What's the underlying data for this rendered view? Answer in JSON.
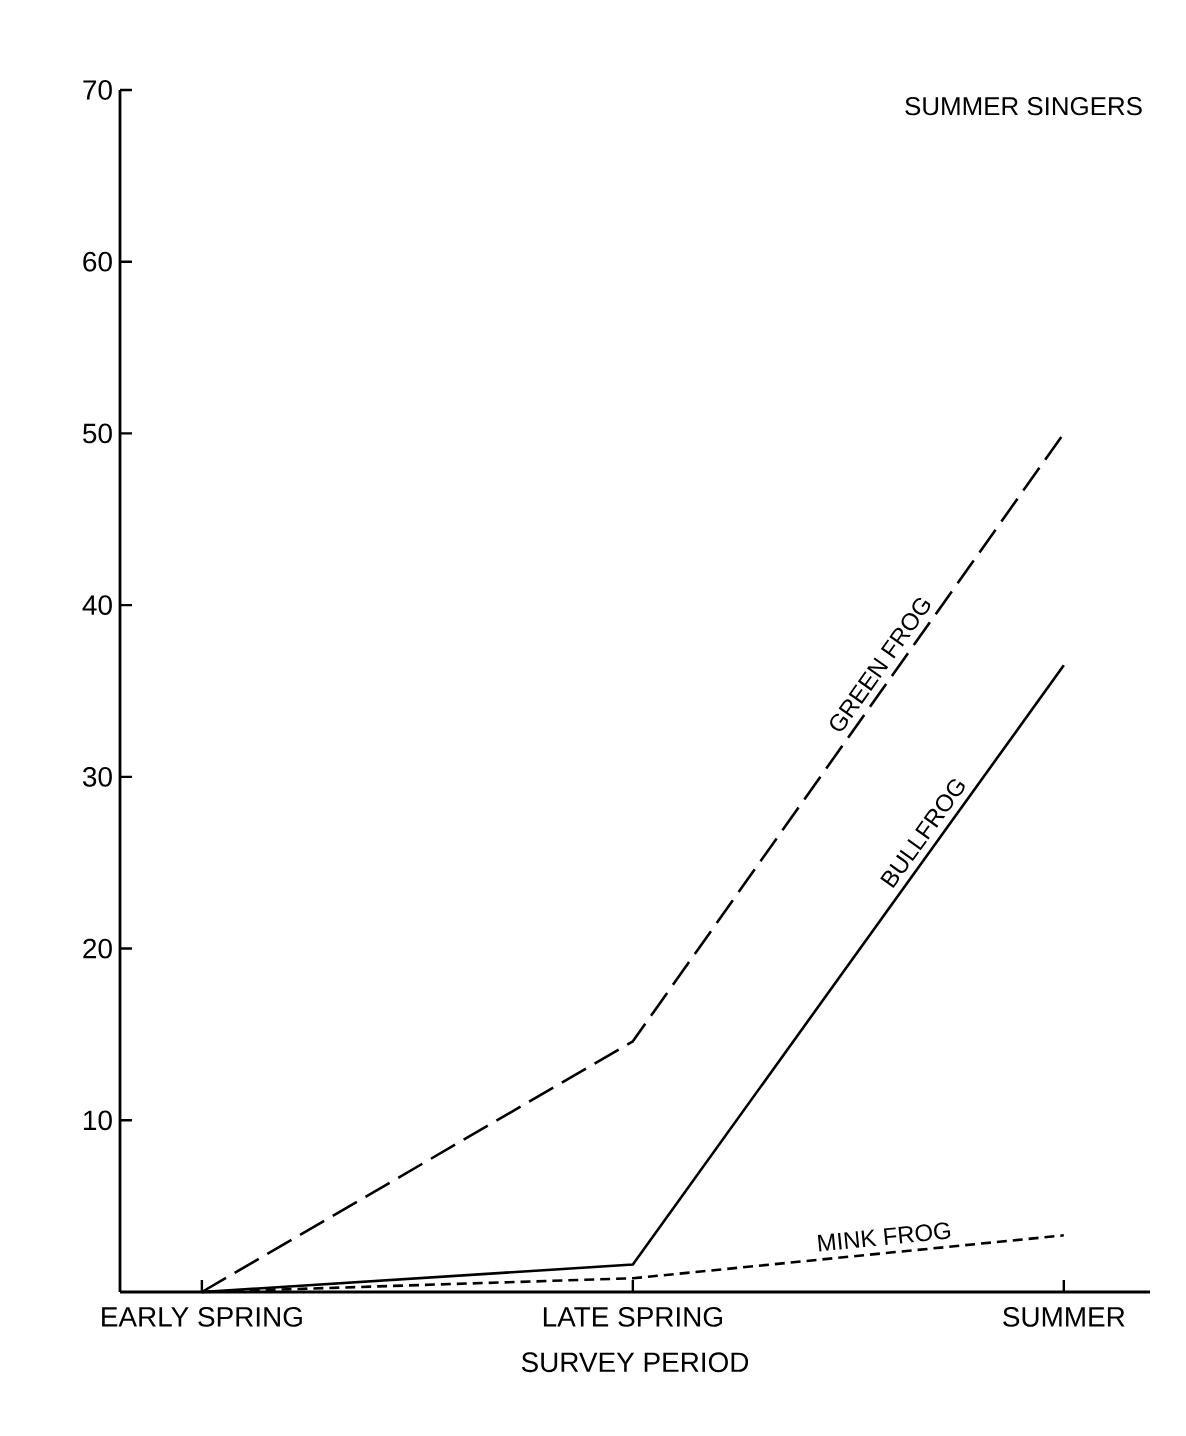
{
  "chart_data": {
    "type": "line",
    "title": "SUMMER SINGERS",
    "xlabel": "SURVEY PERIOD",
    "categories": [
      "EARLY SPRING",
      "LATE SPRING",
      "SUMMER"
    ],
    "ylim": [
      0,
      70
    ],
    "yticks": [
      10,
      20,
      30,
      40,
      50,
      60,
      70
    ],
    "series": [
      {
        "name": "GREEN FROG",
        "color": "#000000",
        "line_style": "longdashed",
        "values": [
          0,
          14.6,
          50
        ]
      },
      {
        "name": "BULLFROG",
        "color": "#000000",
        "line_style": "solid",
        "values": [
          0,
          1.6,
          36.5
        ]
      },
      {
        "name": "MINK FROG",
        "color": "#000000",
        "line_style": "dashed",
        "values": [
          0,
          0.8,
          3.3
        ]
      }
    ]
  }
}
